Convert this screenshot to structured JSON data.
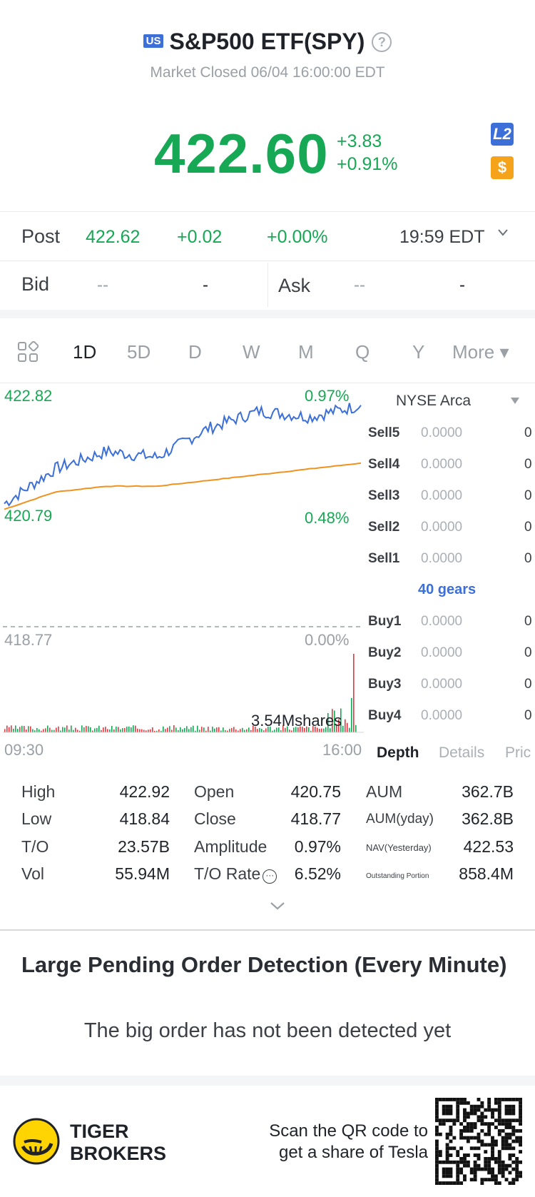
{
  "header": {
    "market_badge": "US",
    "title": "S&P500 ETF(SPY)",
    "help_icon": "question-circle-icon",
    "status": "Market Closed 06/04 16:00:00 EDT"
  },
  "quote": {
    "price": "422.60",
    "change": "+3.83",
    "change_pct": "+0.91%",
    "l2_badge": "L2",
    "dollar_badge": "$",
    "accent_green": "#16a854"
  },
  "post": {
    "label": "Post",
    "price": "422.62",
    "change": "+0.02",
    "change_pct": "+0.00%",
    "time": "19:59 EDT"
  },
  "bidask": {
    "bid_label": "Bid",
    "bid_price": "--",
    "bid_size": "-",
    "ask_label": "Ask",
    "ask_price": "--",
    "ask_size": "-"
  },
  "tabs": {
    "grid_icon": "grid-icon",
    "items": [
      "1D",
      "5D",
      "D",
      "W",
      "M",
      "Q",
      "Y",
      "More ▾"
    ],
    "active": "1D"
  },
  "chart": {
    "high_price": "422.82",
    "high_pct": "0.97%",
    "low_price": "420.79",
    "low_pct": "0.48%",
    "prev_close": "418.77",
    "prev_pct": "0.00%",
    "volume_label": "3.54Mshares",
    "time_start": "09:30",
    "time_end": "16:00",
    "price_color": "#3c6fd8",
    "avg_color": "#f0921e"
  },
  "chart_data": {
    "type": "line",
    "x": [
      "09:30",
      "10:00",
      "11:00",
      "12:00",
      "13:00",
      "14:00",
      "15:00",
      "16:00"
    ],
    "series": [
      {
        "values": [
          420.9,
          421.5,
          421.8,
          421.7,
          422.2,
          422.5,
          422.4,
          422.6
        ]
      },
      {
        "values": [
          420.8,
          421.1,
          421.2,
          421.2,
          421.3,
          421.4,
          421.5,
          421.6
        ]
      }
    ],
    "ylim": [
      418.77,
      422.82
    ]
  },
  "orderbook": {
    "exchange": "NYSE Arca",
    "sells": [
      {
        "name": "Sell5",
        "price": "0.0000",
        "qty": "0"
      },
      {
        "name": "Sell4",
        "price": "0.0000",
        "qty": "0"
      },
      {
        "name": "Sell3",
        "price": "0.0000",
        "qty": "0"
      },
      {
        "name": "Sell2",
        "price": "0.0000",
        "qty": "0"
      },
      {
        "name": "Sell1",
        "price": "0.0000",
        "qty": "0"
      }
    ],
    "gears": "40 gears",
    "buys": [
      {
        "name": "Buy1",
        "price": "0.0000",
        "qty": "0"
      },
      {
        "name": "Buy2",
        "price": "0.0000",
        "qty": "0"
      },
      {
        "name": "Buy3",
        "price": "0.0000",
        "qty": "0"
      },
      {
        "name": "Buy4",
        "price": "0.0000",
        "qty": "0"
      }
    ],
    "tabs": [
      "Depth",
      "Details",
      "Pric"
    ]
  },
  "stats": {
    "col1": [
      {
        "label": "High",
        "value": "422.92"
      },
      {
        "label": "Low",
        "value": "418.84"
      },
      {
        "label": "T/O",
        "value": "23.57B"
      },
      {
        "label": "Vol",
        "value": "55.94M"
      }
    ],
    "col2": [
      {
        "label": "Open",
        "value": "420.75"
      },
      {
        "label": "Close",
        "value": "418.77"
      },
      {
        "label": "Amplitude",
        "value": "0.97%"
      },
      {
        "label": "T/O Rate",
        "value": "6.52%"
      }
    ],
    "col3": [
      {
        "label": "AUM",
        "value": "362.7B"
      },
      {
        "label": "AUM(yday)",
        "value": "362.8B"
      },
      {
        "label": "NAV(Yesterday)",
        "value": "422.53"
      },
      {
        "label": "Outstanding Portion",
        "value": "858.4M"
      }
    ]
  },
  "large_order": {
    "title": "Large Pending Order Detection (Every Minute)",
    "message": "The big order has not been detected yet"
  },
  "footer": {
    "brand_line1": "TIGER",
    "brand_line2": "BROKERS",
    "scan_line1": "Scan the QR code to",
    "scan_line2": "get a share of Tesla",
    "logo_color": "#ffd400"
  }
}
